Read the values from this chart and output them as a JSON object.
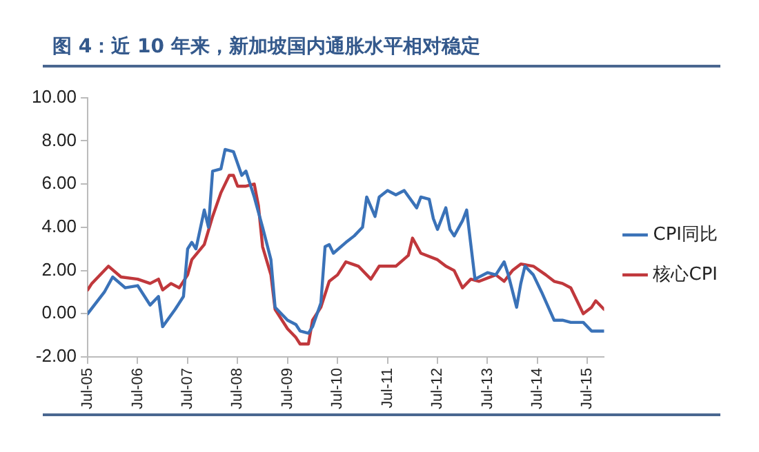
{
  "chart_data": {
    "type": "line",
    "title": "图 4：近 10 年来，新加坡国内通胀水平相对稳定",
    "xlim": [
      "2005-07",
      "2015-11"
    ],
    "xticks": [
      {
        "value": "2005-07",
        "label": "Jul-05"
      },
      {
        "value": "2006-07",
        "label": "Jul-06"
      },
      {
        "value": "2007-07",
        "label": "Jul-07"
      },
      {
        "value": "2008-07",
        "label": "Jul-08"
      },
      {
        "value": "2009-07",
        "label": "Jul-09"
      },
      {
        "value": "2010-07",
        "label": "Jul-10"
      },
      {
        "value": "2011-07",
        "label": "Jul-11"
      },
      {
        "value": "2012-07",
        "label": "Jul-12"
      },
      {
        "value": "2013-07",
        "label": "Jul-13"
      },
      {
        "value": "2014-07",
        "label": "Jul-14"
      },
      {
        "value": "2015-07",
        "label": "Jul-15"
      }
    ],
    "ylim": [
      -2,
      10
    ],
    "yticks": [
      {
        "value": -2,
        "label": "-2.00"
      },
      {
        "value": 0,
        "label": "0.00"
      },
      {
        "value": 2,
        "label": "2.00"
      },
      {
        "value": 4,
        "label": "4.00"
      },
      {
        "value": 6,
        "label": "6.00"
      },
      {
        "value": 8,
        "label": "8.00"
      },
      {
        "value": 10,
        "label": "10.00"
      }
    ],
    "grid": false,
    "legend": "right",
    "marker": "none",
    "line_style": "solid",
    "series": [
      {
        "name": "CPI同比",
        "color": "#3a72b8",
        "x": [
          "2005-07",
          "2005-11",
          "2006-01",
          "2006-04",
          "2006-07",
          "2006-10",
          "2006-12",
          "2007-01",
          "2007-04",
          "2007-06",
          "2007-07",
          "2007-08",
          "2007-09",
          "2007-11",
          "2007-12",
          "2008-01",
          "2008-03",
          "2008-04",
          "2008-06",
          "2008-08",
          "2008-09",
          "2008-11",
          "2009-01",
          "2009-03",
          "2009-04",
          "2009-07",
          "2009-09",
          "2009-10",
          "2009-12",
          "2010-01",
          "2010-03",
          "2010-04",
          "2010-05",
          "2010-06",
          "2010-09",
          "2010-11",
          "2011-01",
          "2011-02",
          "2011-04",
          "2011-05",
          "2011-07",
          "2011-09",
          "2011-11",
          "2012-02",
          "2012-03",
          "2012-05",
          "2012-06",
          "2012-07",
          "2012-09",
          "2012-10",
          "2012-11",
          "2013-01",
          "2013-02",
          "2013-04",
          "2013-07",
          "2013-09",
          "2013-11",
          "2013-12",
          "2014-02",
          "2014-03",
          "2014-04",
          "2014-06",
          "2014-08",
          "2014-11",
          "2015-01",
          "2015-03",
          "2015-06",
          "2015-08",
          "2015-11"
        ],
        "values": [
          0.0,
          1.0,
          1.7,
          1.2,
          1.3,
          0.4,
          0.8,
          -0.6,
          0.2,
          0.8,
          3.0,
          3.3,
          3.0,
          4.8,
          4.0,
          6.6,
          6.7,
          7.6,
          7.5,
          6.4,
          6.6,
          5.4,
          4.0,
          2.5,
          0.3,
          -0.3,
          -0.5,
          -0.8,
          -0.9,
          -0.6,
          0.5,
          3.1,
          3.2,
          2.8,
          3.3,
          3.6,
          4.0,
          5.4,
          4.5,
          5.4,
          5.7,
          5.5,
          5.7,
          4.9,
          5.4,
          5.3,
          4.4,
          3.9,
          4.9,
          3.9,
          3.6,
          4.3,
          4.8,
          1.6,
          1.9,
          1.8,
          2.4,
          1.8,
          0.3,
          1.4,
          2.2,
          1.8,
          1.0,
          -0.3,
          -0.3,
          -0.4,
          -0.4,
          -0.8,
          -0.8
        ]
      },
      {
        "name": "核心CPI",
        "color": "#c0383c",
        "x": [
          "2005-07",
          "2005-08",
          "2005-12",
          "2006-03",
          "2006-07",
          "2006-10",
          "2006-12",
          "2007-01",
          "2007-03",
          "2007-05",
          "2007-07",
          "2007-08",
          "2007-11",
          "2008-01",
          "2008-03",
          "2008-05",
          "2008-06",
          "2008-07",
          "2008-09",
          "2008-11",
          "2008-12",
          "2009-01",
          "2009-03",
          "2009-04",
          "2009-07",
          "2009-09",
          "2009-10",
          "2009-12",
          "2010-01",
          "2010-03",
          "2010-05",
          "2010-07",
          "2010-09",
          "2010-12",
          "2011-03",
          "2011-05",
          "2011-09",
          "2011-12",
          "2012-01",
          "2012-03",
          "2012-07",
          "2012-09",
          "2012-11",
          "2013-01",
          "2013-03",
          "2013-05",
          "2013-09",
          "2013-11",
          "2014-01",
          "2014-03",
          "2014-06",
          "2014-09",
          "2014-11",
          "2015-01",
          "2015-03",
          "2015-05",
          "2015-06",
          "2015-08",
          "2015-09",
          "2015-11"
        ],
        "values": [
          1.1,
          1.4,
          2.2,
          1.7,
          1.6,
          1.4,
          1.6,
          1.1,
          1.4,
          1.2,
          1.8,
          2.5,
          3.2,
          4.5,
          5.6,
          6.4,
          6.4,
          5.9,
          5.9,
          6.0,
          5.0,
          3.1,
          1.8,
          0.2,
          -0.7,
          -1.1,
          -1.4,
          -1.4,
          -0.3,
          0.3,
          1.5,
          1.8,
          2.4,
          2.2,
          1.6,
          2.2,
          2.2,
          2.7,
          3.5,
          2.8,
          2.5,
          2.2,
          2.0,
          1.2,
          1.6,
          1.5,
          1.8,
          1.5,
          2.0,
          2.3,
          2.2,
          1.8,
          1.5,
          1.4,
          1.2,
          0.4,
          0.0,
          0.3,
          0.6,
          0.2
        ]
      }
    ]
  }
}
